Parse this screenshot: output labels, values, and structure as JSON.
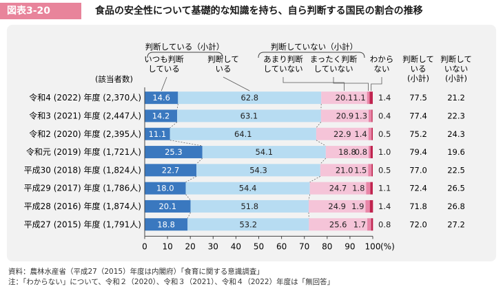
{
  "header": {
    "badge": "図表3-20",
    "title": "食品の安全性について基礎的な知識を持ち、自ら判断する国民の割合の推移"
  },
  "colors": {
    "always": "#3a78bf",
    "usually": "#b7dcf2",
    "rarely": "#f5c4d8",
    "never": "#e886a8",
    "dontknow": "#c0244f",
    "panel": "#f2f2f2"
  },
  "chart_data": {
    "type": "bar",
    "stacked": true,
    "orientation": "horizontal",
    "row_header": "(該当者数)",
    "group_headers": [
      "判断している（小計）",
      "判断していない（小計）"
    ],
    "series_labels": [
      "いつも判断している",
      "判断している",
      "あまり判断していない",
      "まったく判断していない",
      "わからない"
    ],
    "series_label_lines": [
      [
        "いつも判断",
        "している"
      ],
      [
        "判断して",
        "いる"
      ],
      [
        "あまり判断",
        "していない"
      ],
      [
        "まったく判断",
        "していない"
      ],
      [
        "わから",
        "ない"
      ]
    ],
    "subtotal_header_lines": [
      [
        "判断して",
        "いる",
        "(小計)"
      ],
      [
        "判断して",
        "いない",
        "(小計)"
      ]
    ],
    "categories": [
      "令和4 (2022) 年度 (2,370人)",
      "令和3 (2021) 年度 (2,447人)",
      "令和2 (2020) 年度 (2,395人)",
      "令和元 (2019) 年度 (1,721人)",
      "平成30 (2018) 年度 (1,824人)",
      "平成29 (2017) 年度 (1,786人)",
      "平成28 (2016) 年度 (1,874人)",
      "平成27 (2015) 年度 (1,791人)"
    ],
    "series": [
      {
        "name": "いつも判断している",
        "values": [
          14.6,
          14.2,
          11.1,
          25.3,
          22.7,
          18.0,
          20.1,
          18.8
        ]
      },
      {
        "name": "判断している",
        "values": [
          62.8,
          63.1,
          64.1,
          54.1,
          54.3,
          54.4,
          51.8,
          53.2
        ]
      },
      {
        "name": "あまり判断していない",
        "values": [
          20.1,
          20.9,
          22.9,
          18.8,
          21.0,
          24.7,
          24.9,
          25.6
        ]
      },
      {
        "name": "まったく判断していない",
        "values": [
          1.1,
          1.3,
          1.4,
          0.8,
          1.5,
          1.8,
          1.9,
          1.7
        ]
      },
      {
        "name": "わからない",
        "values": [
          1.4,
          0.4,
          0.5,
          1.0,
          0.5,
          1.1,
          1.4,
          0.8
        ]
      }
    ],
    "subtotal_judging": [
      77.5,
      77.4,
      75.2,
      79.4,
      77.0,
      72.4,
      71.8,
      72.0
    ],
    "subtotal_not_judging": [
      21.2,
      22.3,
      24.3,
      19.6,
      22.5,
      26.5,
      26.8,
      27.2
    ],
    "value_labels": [
      [
        "14.6",
        "62.8",
        "20.1",
        "1.1",
        "1.4"
      ],
      [
        "14.2",
        "63.1",
        "20.9",
        "1.3",
        "0.4"
      ],
      [
        "11.1",
        "64.1",
        "22.9",
        "1.4",
        "0.5"
      ],
      [
        "25.3",
        "54.1",
        "18.8",
        "0.8",
        "1.0"
      ],
      [
        "22.7",
        "54.3",
        "21.0",
        "1.5",
        "0.5"
      ],
      [
        "18.0",
        "54.4",
        "24.7",
        "1.8",
        "1.1"
      ],
      [
        "20.1",
        "51.8",
        "24.9",
        "1.9",
        "1.4"
      ],
      [
        "18.8",
        "53.2",
        "25.6",
        "1.7",
        "0.8"
      ]
    ],
    "subtotal_labels": [
      [
        "77.5",
        "21.2"
      ],
      [
        "77.4",
        "22.3"
      ],
      [
        "75.2",
        "24.3"
      ],
      [
        "79.4",
        "19.6"
      ],
      [
        "77.0",
        "22.5"
      ],
      [
        "72.4",
        "26.5"
      ],
      [
        "71.8",
        "26.8"
      ],
      [
        "72.0",
        "27.2"
      ]
    ],
    "xlim": [
      0,
      100
    ],
    "xticks": [
      "0",
      "10",
      "20",
      "30",
      "40",
      "50",
      "60",
      "70",
      "80",
      "90",
      "100"
    ],
    "xunit": "(%)"
  },
  "notes": {
    "source": "資料：農林水産省（平成27（2015）年度は内閣府）「食育に関する意識調査」",
    "note": "注：「わからない」について、令和２（2020）、令和３（2021）、令和４（2022）年度は「無回答」"
  }
}
